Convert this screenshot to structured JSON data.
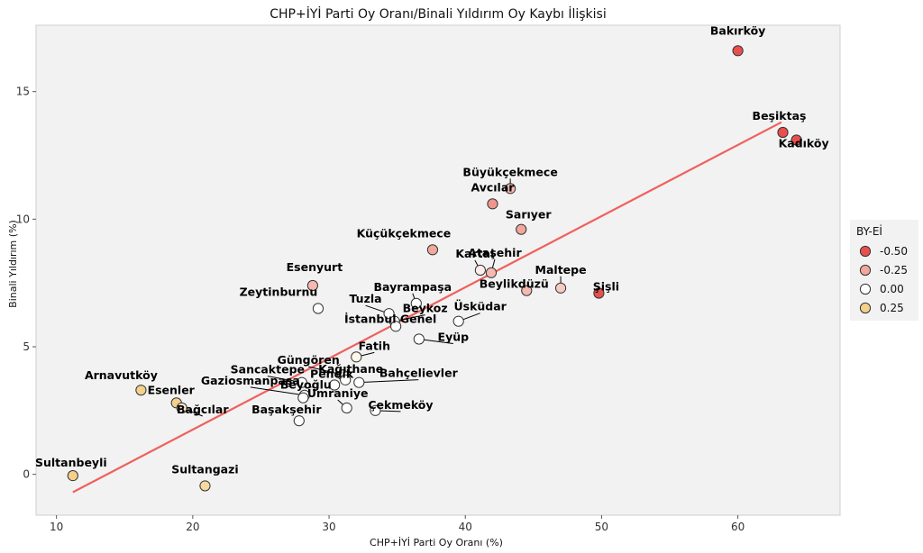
{
  "chart_data": {
    "type": "scatter",
    "title": "CHP+İYİ Parti Oy Oranı/Binali Yıldırım Oy Kaybı İlişkisi",
    "xlabel": "CHP+İYİ Parti Oy Oranı (%)",
    "ylabel": "Binali Yıldırım (%)",
    "xlim": [
      8.5,
      67.5
    ],
    "ylim": [
      -1.6,
      17.6
    ],
    "xticks": [
      10,
      20,
      30,
      40,
      50,
      60
    ],
    "yticks": [
      0,
      5,
      10,
      15
    ],
    "grid": false,
    "legend": {
      "title": "BY-Eİ",
      "position": "right",
      "entries": [
        {
          "label": "-0.50",
          "color": "#e8504e"
        },
        {
          "label": "-0.25",
          "color": "#f2a79c"
        },
        {
          "label": "0.00",
          "color": "#ffffff"
        },
        {
          "label": "0.25",
          "color": "#f5d08a"
        }
      ]
    },
    "trendline": {
      "color": "#f0605e",
      "x": [
        11.2,
        63.2
      ],
      "y": [
        -0.7,
        13.8
      ]
    },
    "points": [
      {
        "name": "Bakırköy",
        "x": 60.0,
        "y": 16.6,
        "c": -0.5
      },
      {
        "name": "Beşiktaş",
        "x": 63.3,
        "y": 13.4,
        "c": -0.5
      },
      {
        "name": "Kadıköy",
        "x": 64.3,
        "y": 13.1,
        "c": -0.5
      },
      {
        "name": "Büyükçekmece",
        "x": 43.3,
        "y": 11.2,
        "c": -0.2
      },
      {
        "name": "Avcılar",
        "x": 42.0,
        "y": 10.6,
        "c": -0.3
      },
      {
        "name": "Sarıyer",
        "x": 44.1,
        "y": 9.6,
        "c": -0.25
      },
      {
        "name": "Küçükçekmece",
        "x": 37.6,
        "y": 8.8,
        "c": -0.25
      },
      {
        "name": "Kartal",
        "x": 41.1,
        "y": 8.0,
        "c": -0.05
      },
      {
        "name": "Ataşehir",
        "x": 41.9,
        "y": 7.9,
        "c": -0.2
      },
      {
        "name": "Maltepe",
        "x": 47.0,
        "y": 7.3,
        "c": -0.15
      },
      {
        "name": "Şişli",
        "x": 49.8,
        "y": 7.1,
        "c": -0.5
      },
      {
        "name": "Beylikdüzü",
        "x": 44.5,
        "y": 7.2,
        "c": -0.2
      },
      {
        "name": "Esenyurt",
        "x": 28.8,
        "y": 7.4,
        "c": -0.2
      },
      {
        "name": "Bayrampaşa",
        "x": 36.4,
        "y": 6.7,
        "c": 0.0
      },
      {
        "name": "Zeytinburnu",
        "x": 29.2,
        "y": 6.5,
        "c": 0.0
      },
      {
        "name": "Tuzla",
        "x": 34.4,
        "y": 6.3,
        "c": 0.0
      },
      {
        "name": "Beykoz",
        "x": 34.8,
        "y": 6.0,
        "c": 0.0
      },
      {
        "name": "Üsküdar",
        "x": 39.5,
        "y": 6.0,
        "c": 0.0
      },
      {
        "name": "İstanbul Genel",
        "x": 34.9,
        "y": 5.8,
        "c": 0.0
      },
      {
        "name": "Fatih",
        "x": 32.0,
        "y": 4.6,
        "c": 0.05
      },
      {
        "name": "Eyüp",
        "x": 36.6,
        "y": 5.3,
        "c": 0.0
      },
      {
        "name": "Güngören",
        "x": 31.0,
        "y": 3.9,
        "c": 0.05
      },
      {
        "name": "Kağıthane",
        "x": 31.2,
        "y": 3.7,
        "c": 0.0
      },
      {
        "name": "Sancaktepe",
        "x": 28.0,
        "y": 3.6,
        "c": 0.0
      },
      {
        "name": "Pendik",
        "x": 30.4,
        "y": 3.5,
        "c": 0.0
      },
      {
        "name": "Bahçelievler",
        "x": 32.2,
        "y": 3.6,
        "c": 0.0
      },
      {
        "name": "Gaziosmanpaşa",
        "x": 28.2,
        "y": 3.1,
        "c": 0.0
      },
      {
        "name": "Beyoğlu",
        "x": 28.1,
        "y": 3.0,
        "c": 0.0
      },
      {
        "name": "Ümraniye",
        "x": 31.3,
        "y": 2.6,
        "c": 0.0
      },
      {
        "name": "Çekmeköy",
        "x": 33.4,
        "y": 2.5,
        "c": 0.0
      },
      {
        "name": "Başakşehir",
        "x": 27.8,
        "y": 2.1,
        "c": 0.0
      },
      {
        "name": "Arnavutköy",
        "x": 16.2,
        "y": 3.3,
        "c": 0.25
      },
      {
        "name": "Esenler",
        "x": 18.8,
        "y": 2.8,
        "c": 0.25
      },
      {
        "name": "Bağcılar",
        "x": 19.2,
        "y": 2.6,
        "c": 0.1
      },
      {
        "name": "Sultanbeyli",
        "x": 11.2,
        "y": -0.05,
        "c": 0.25
      },
      {
        "name": "Sultangazi",
        "x": 20.9,
        "y": -0.45,
        "c": 0.2
      }
    ]
  }
}
